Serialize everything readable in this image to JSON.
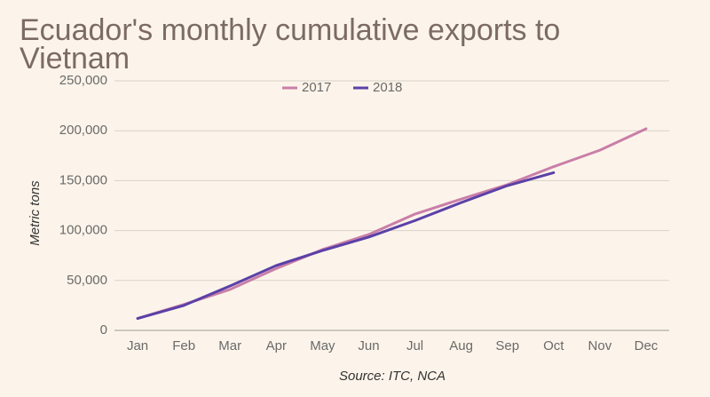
{
  "chart_data": {
    "type": "line",
    "title": "Ecuador's monthly cumulative exports to Vietnam",
    "y_label": "Metric tons",
    "source": "Source: ITC, NCA",
    "categories": [
      "Jan",
      "Feb",
      "Mar",
      "Apr",
      "May",
      "Jun",
      "Jul",
      "Aug",
      "Sep",
      "Oct",
      "Nov",
      "Dec"
    ],
    "series": [
      {
        "name": "2017",
        "color": "#c97fa8",
        "values": [
          12000,
          26000,
          41000,
          62000,
          81000,
          96000,
          116500,
          131500,
          146000,
          164000,
          180500,
          202000
        ]
      },
      {
        "name": "2018",
        "color": "#5b40a8",
        "values": [
          12000,
          25000,
          44500,
          65000,
          80000,
          93500,
          110000,
          128000,
          145000,
          158000,
          null,
          null
        ]
      }
    ],
    "ylim": [
      0,
      250000
    ],
    "yticks": [
      0,
      {
        "value": 50000,
        "label": "50,000"
      },
      {
        "value": 100000,
        "label": "100,000"
      },
      {
        "value": 150000,
        "label": "150,000"
      },
      {
        "value": 200000,
        "label": "200,000"
      },
      {
        "value": 250000,
        "label": "250,000"
      }
    ],
    "grid": true,
    "legend": "top"
  }
}
